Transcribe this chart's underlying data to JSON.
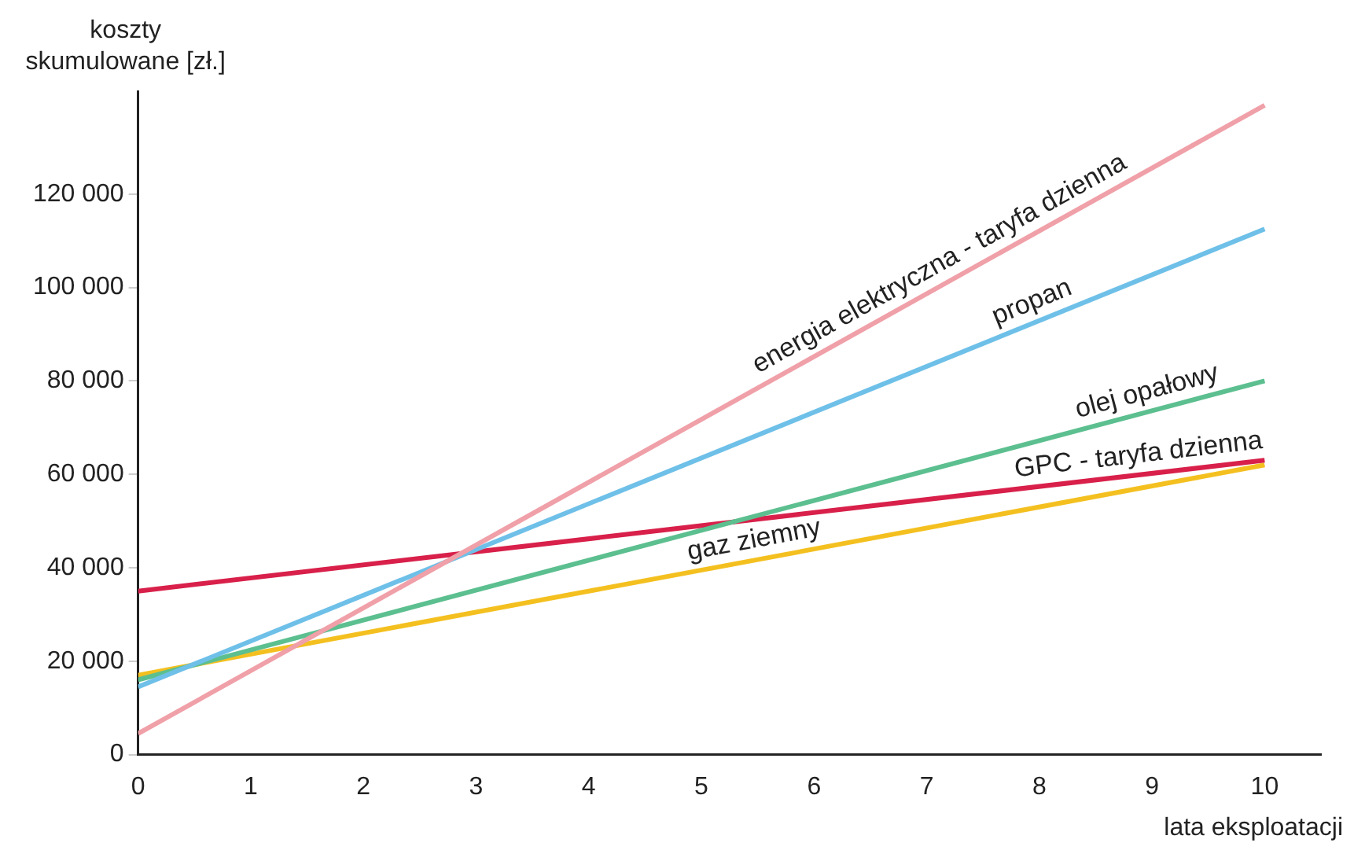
{
  "chart_data": {
    "type": "line",
    "xlabel": "lata eksploatacji",
    "ylabel": "koszty skumulowane [zł.]",
    "x": [
      0,
      10
    ],
    "series": [
      {
        "name": "energia elektryczna - taryfa dzienna",
        "color": "#f0a0a8",
        "values": [
          4500,
          139000
        ]
      },
      {
        "name": "propan",
        "color": "#6ec0e8",
        "values": [
          14500,
          112500
        ]
      },
      {
        "name": "olej opałowy",
        "color": "#5cbf8f",
        "values": [
          16000,
          80000
        ]
      },
      {
        "name": "GPC - taryfa dzienna",
        "color": "#d8204a",
        "values": [
          35000,
          63000
        ]
      },
      {
        "name": "gaz ziemny",
        "color": "#f4c020",
        "values": [
          17000,
          62000
        ]
      }
    ],
    "xlim": [
      0,
      10.5
    ],
    "xticks": [
      0,
      1,
      2,
      3,
      4,
      5,
      6,
      7,
      8,
      9,
      10
    ],
    "ylim": [
      0,
      142000
    ],
    "yticks": [
      {
        "value": 0,
        "label": "0"
      },
      {
        "value": 20000,
        "label": "20 000"
      },
      {
        "value": 40000,
        "label": "40 000"
      },
      {
        "value": 60000,
        "label": "60 000"
      },
      {
        "value": 80000,
        "label": "80 000"
      },
      {
        "value": 100000,
        "label": "100 000"
      },
      {
        "value": 120000,
        "label": "120 000"
      }
    ],
    "grid": false,
    "legend": false,
    "marker": "none",
    "line_style": "solid"
  }
}
